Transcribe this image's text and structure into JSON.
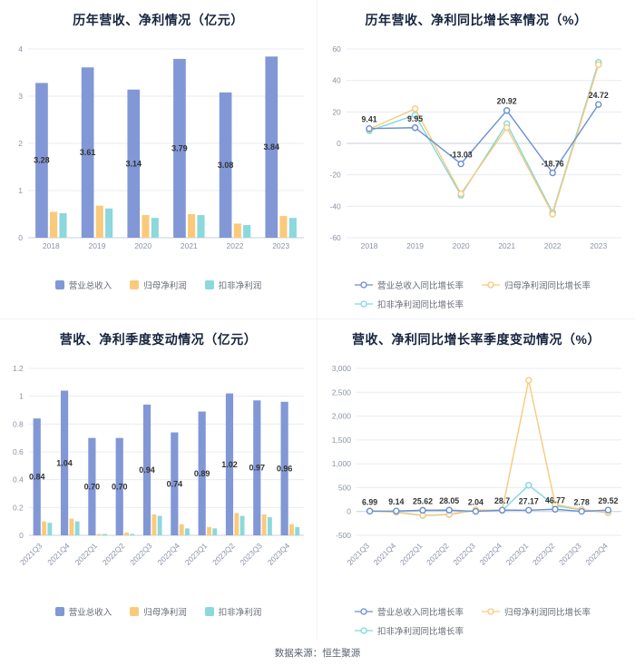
{
  "page": {
    "source_note": "数据来源：恒生聚源"
  },
  "colors": {
    "bar_blue": "#8197D6",
    "bar_orange": "#FACA7B",
    "bar_teal": "#8BD8DD",
    "line_blue": "#6A8FD2",
    "line_orange": "#F9C97C",
    "line_teal": "#7FD8DD",
    "title_text": "#16243E",
    "axis_text": "#8A93A6"
  },
  "chart_data": [
    {
      "id": "annual-revenue-profit",
      "type": "bar",
      "title": "历年营收、净利情况（亿元）",
      "categories": [
        "2018",
        "2019",
        "2020",
        "2021",
        "2022",
        "2023"
      ],
      "series": [
        {
          "key": "revenue",
          "name": "营业总收入",
          "color": "#8197D6",
          "labeled": true,
          "values": [
            3.28,
            3.61,
            3.14,
            3.79,
            3.08,
            3.84
          ],
          "labels": [
            "3.28",
            "3.61",
            "3.14",
            "3.79",
            "3.08",
            "3.84"
          ]
        },
        {
          "key": "net-profit",
          "name": "归母净利润",
          "color": "#FACA7B",
          "values": [
            0.55,
            0.68,
            0.48,
            0.5,
            0.3,
            0.46
          ]
        },
        {
          "key": "non-gaap-profit",
          "name": "扣非净利润",
          "color": "#8BD8DD",
          "values": [
            0.52,
            0.62,
            0.42,
            0.48,
            0.27,
            0.42
          ]
        }
      ],
      "ylim": [
        0,
        4
      ],
      "yticks": [
        0,
        1,
        2,
        3,
        4
      ],
      "ytick_labels": [
        "0",
        "1",
        "2",
        "3",
        "4"
      ],
      "rotate_labels": false,
      "legend_position": "bottom",
      "grid": true
    },
    {
      "id": "annual-growth",
      "type": "line",
      "title": "历年营收、净利同比增长率情况（%）",
      "categories": [
        "2018",
        "2019",
        "2020",
        "2021",
        "2022",
        "2023"
      ],
      "series": [
        {
          "key": "revenue-growth",
          "name": "营业总收入同比增长率",
          "color": "#6A8FD2",
          "labeled": true,
          "values": [
            9.41,
            9.95,
            -13.03,
            20.92,
            -18.76,
            24.72
          ],
          "labels": [
            "9.41",
            "9.95",
            "-13.03",
            "20.92",
            "-18.76",
            "24.72"
          ]
        },
        {
          "key": "net-profit-growth",
          "name": "归母净利润同比增长率",
          "color": "#F9C97C",
          "values": [
            9.0,
            22.0,
            -32.0,
            10.0,
            -45.0,
            50.0
          ]
        },
        {
          "key": "non-gaap-growth",
          "name": "扣非净利润同比增长率",
          "color": "#7FD8DD",
          "values": [
            8.0,
            18.0,
            -33.0,
            12.5,
            -44.0,
            51.5
          ]
        }
      ],
      "ylim": [
        -60,
        60
      ],
      "yticks": [
        -60,
        -40,
        -20,
        0,
        20,
        40,
        60
      ],
      "ytick_labels": [
        "-60",
        "-40",
        "-20",
        "0",
        "20",
        "40",
        "60"
      ],
      "rotate_labels": false,
      "legend_position": "bottom",
      "grid": true
    },
    {
      "id": "quarterly-revenue-profit",
      "type": "bar",
      "title": "营收、净利季度变动情况（亿元）",
      "categories": [
        "2021Q3",
        "2021Q4",
        "2022Q1",
        "2022Q2",
        "2022Q3",
        "2022Q4",
        "2023Q1",
        "2023Q2",
        "2023Q3",
        "2023Q4"
      ],
      "series": [
        {
          "key": "revenue",
          "name": "营业总收入",
          "color": "#8197D6",
          "labeled": true,
          "values": [
            0.84,
            1.04,
            0.7,
            0.7,
            0.94,
            0.74,
            0.89,
            1.02,
            0.97,
            0.96
          ],
          "labels": [
            "0.84",
            "1.04",
            "0.70",
            "0.70",
            "0.94",
            "0.74",
            "0.89",
            "1.02",
            "0.97",
            "0.96"
          ]
        },
        {
          "key": "net-profit",
          "name": "归母净利润",
          "color": "#FACA7B",
          "values": [
            0.1,
            0.12,
            0.01,
            0.02,
            0.15,
            0.08,
            0.06,
            0.16,
            0.15,
            0.08
          ]
        },
        {
          "key": "non-gaap-profit",
          "name": "扣非净利润",
          "color": "#8BD8DD",
          "values": [
            0.09,
            0.1,
            0.01,
            0.01,
            0.14,
            0.05,
            0.05,
            0.14,
            0.13,
            0.06
          ]
        }
      ],
      "ylim": [
        0,
        1.2
      ],
      "yticks": [
        0,
        0.2,
        0.4,
        0.6,
        0.8,
        1,
        1.2
      ],
      "ytick_labels": [
        "0",
        "0.2",
        "0.4",
        "0.6",
        "0.8",
        "1",
        "1.2"
      ],
      "rotate_labels": true,
      "legend_position": "bottom",
      "grid": true
    },
    {
      "id": "quarterly-growth",
      "type": "line",
      "title": "营收、净利同比增长率季度变动情况（%）",
      "categories": [
        "2021Q3",
        "2021Q4",
        "2022Q1",
        "2022Q2",
        "2022Q3",
        "2022Q4",
        "2023Q1",
        "2023Q2",
        "2023Q3",
        "2023Q4"
      ],
      "series": [
        {
          "key": "revenue-growth",
          "name": "营业总收入同比增长率",
          "color": "#6A8FD2",
          "labeled": true,
          "values": [
            6.99,
            9.14,
            25.62,
            28.05,
            2.04,
            28.7,
            27.17,
            46.77,
            2.78,
            29.52
          ],
          "labels": [
            "6.99",
            "9.14",
            "25.62",
            "28.05",
            "2.04",
            "28.7",
            "27.17",
            "46.77",
            "2.78",
            "29.52"
          ]
        },
        {
          "key": "net-profit-growth",
          "name": "归母净利润同比增长率",
          "color": "#F9C97C",
          "values": [
            15,
            -10,
            -80,
            -60,
            30,
            25,
            2750,
            150,
            40,
            -20
          ]
        },
        {
          "key": "non-gaap-growth",
          "name": "扣非净利润同比增长率",
          "color": "#7FD8DD",
          "values": [
            10,
            -15,
            -85,
            -65,
            25,
            20,
            550,
            120,
            35,
            -25
          ]
        }
      ],
      "ylim": [
        -500,
        3000
      ],
      "yticks": [
        -500,
        0,
        500,
        1000,
        1500,
        2000,
        2500,
        3000
      ],
      "ytick_labels": [
        "-500",
        "0",
        "500",
        "1,000",
        "1,500",
        "2,000",
        "2,500",
        "3,000"
      ],
      "rotate_labels": true,
      "legend_position": "bottom",
      "grid": true
    }
  ]
}
